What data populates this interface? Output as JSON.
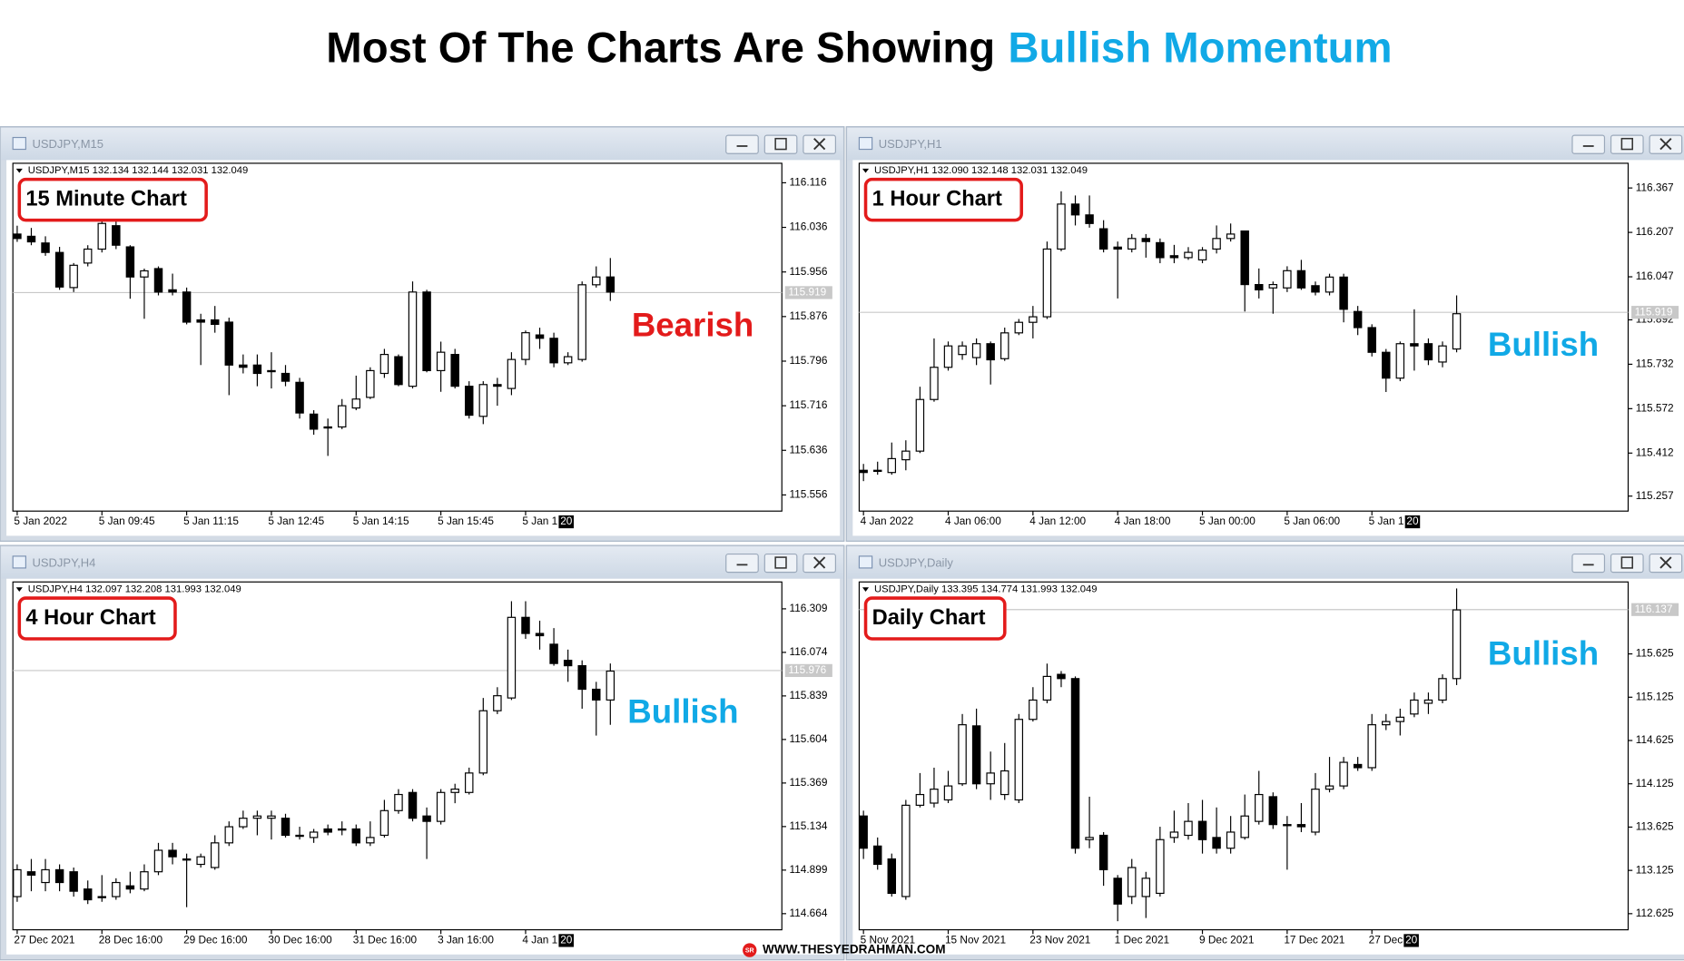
{
  "title": "Most Of The Charts Are Showing",
  "title_highlight": "Bullish Momentum",
  "footer_icon": "SR",
  "footer": "WWW.THESYEDRAHMAN.COM",
  "chart_data": [
    {
      "type": "candlestick",
      "window_title": "USDJPY,M15",
      "info": "USDJPY,M15 132.134 132.144 132.031 132.049",
      "label": "15 Minute Chart",
      "annotation": "Bearish",
      "annotation_color": "#e31b1b",
      "up_color": "#ffffff",
      "down_color": "#000000",
      "categories": [
        "5 Jan 2022",
        null,
        null,
        null,
        null,
        null,
        "5 Jan 09:45",
        null,
        null,
        null,
        null,
        null,
        "5 Jan 11:15",
        null,
        null,
        null,
        null,
        null,
        "5 Jan 12:45",
        null,
        null,
        null,
        null,
        null,
        "5 Jan 14:15",
        null,
        null,
        null,
        null,
        null,
        "5 Jan 15:45",
        null,
        null,
        null,
        null,
        null,
        "5 Jan 1",
        null,
        null,
        null,
        null,
        null,
        null
      ],
      "open": [
        116.024,
        116.02,
        116.008,
        115.991,
        115.928,
        115.972,
        115.997,
        116.039,
        116.001,
        115.947,
        115.962,
        115.924,
        115.92,
        115.87,
        115.87,
        115.866,
        115.789,
        115.789,
        115.779,
        115.774,
        115.758,
        115.701,
        115.678,
        115.678,
        115.712,
        115.731,
        115.774,
        115.804,
        115.751,
        115.92,
        115.779,
        115.808,
        115.751,
        115.697,
        115.754,
        115.747,
        115.799,
        115.843,
        115.837,
        115.793,
        115.799,
        115.933,
        115.947
      ],
      "high": [
        116.039,
        116.035,
        116.02,
        116.001,
        115.972,
        116.004,
        116.049,
        116.047,
        116.004,
        115.962,
        115.966,
        115.953,
        115.928,
        115.881,
        115.895,
        115.874,
        115.808,
        115.808,
        115.812,
        115.789,
        115.766,
        115.708,
        115.693,
        115.728,
        115.77,
        115.785,
        115.818,
        115.808,
        115.939,
        115.924,
        115.831,
        115.818,
        115.76,
        115.76,
        115.766,
        115.812,
        115.851,
        115.856,
        115.847,
        115.812,
        115.939,
        115.966,
        115.981
      ],
      "low": [
        116.01,
        116.004,
        115.985,
        115.924,
        115.92,
        115.966,
        115.991,
        115.997,
        115.908,
        115.872,
        115.914,
        115.914,
        115.862,
        115.789,
        115.847,
        115.735,
        115.774,
        115.751,
        115.747,
        115.751,
        115.693,
        115.664,
        115.626,
        115.674,
        115.708,
        115.728,
        115.766,
        115.751,
        115.747,
        115.776,
        115.741,
        115.747,
        115.693,
        115.683,
        115.716,
        115.735,
        115.789,
        115.818,
        115.785,
        115.789,
        115.795,
        115.928,
        115.904
      ],
      "close": [
        116.016,
        116.01,
        115.991,
        115.929,
        115.968,
        115.997,
        116.043,
        116.004,
        115.947,
        115.958,
        115.92,
        115.92,
        115.866,
        115.866,
        115.862,
        115.789,
        115.785,
        115.774,
        115.779,
        115.76,
        115.703,
        115.674,
        115.678,
        115.716,
        115.728,
        115.779,
        115.808,
        115.754,
        115.92,
        115.779,
        115.812,
        115.751,
        115.699,
        115.754,
        115.751,
        115.799,
        115.847,
        115.837,
        115.793,
        115.804,
        115.933,
        115.947,
        115.92
      ],
      "ylim": [
        115.527,
        116.151
      ],
      "yticks": [
        116.116,
        116.036,
        115.956,
        115.876,
        115.796,
        115.716,
        115.636,
        115.556
      ],
      "current_price": 115.919,
      "cursor_label": "20"
    },
    {
      "type": "candlestick",
      "window_title": "USDJPY,H1",
      "info": "USDJPY,H1 132.090 132.148 132.031 132.049",
      "label": "1 Hour Chart",
      "annotation": "Bullish",
      "annotation_color": "#11a9e6",
      "up_color": "#ffffff",
      "down_color": "#000000",
      "categories": [
        "4 Jan 2022",
        null,
        null,
        null,
        null,
        null,
        "4 Jan 06:00",
        null,
        null,
        null,
        null,
        null,
        "4 Jan 12:00",
        null,
        null,
        null,
        null,
        null,
        "4 Jan 18:00",
        null,
        null,
        null,
        null,
        null,
        "5 Jan 00:00",
        null,
        null,
        null,
        null,
        null,
        "5 Jan 06:00",
        null,
        null,
        null,
        null,
        null,
        "5 Jan 1",
        null,
        null,
        null,
        null,
        null,
        null
      ],
      "open": [
        115.35,
        115.35,
        115.342,
        115.388,
        115.419,
        115.605,
        115.721,
        115.767,
        115.756,
        115.806,
        115.752,
        115.845,
        115.883,
        115.903,
        116.147,
        116.309,
        116.27,
        116.22,
        116.154,
        116.147,
        116.185,
        116.17,
        116.123,
        116.116,
        116.108,
        116.147,
        116.185,
        116.212,
        116.019,
        116.007,
        116.007,
        116.069,
        116.015,
        115.992,
        116.046,
        115.922,
        115.864,
        115.775,
        115.682,
        115.806,
        115.806,
        115.74,
        115.787
      ],
      "high": [
        115.373,
        115.381,
        115.45,
        115.458,
        115.651,
        115.825,
        115.814,
        115.814,
        115.825,
        115.814,
        115.864,
        115.895,
        115.942,
        116.174,
        116.355,
        116.34,
        116.34,
        116.251,
        116.174,
        116.201,
        116.201,
        116.185,
        116.162,
        116.154,
        116.154,
        116.232,
        116.239,
        116.212,
        116.077,
        116.03,
        116.085,
        116.108,
        116.03,
        116.058,
        116.058,
        115.942,
        115.876,
        115.787,
        115.814,
        115.93,
        115.825,
        115.814,
        115.98
      ],
      "low": [
        115.311,
        115.334,
        115.334,
        115.35,
        115.412,
        115.597,
        115.709,
        115.748,
        115.729,
        115.659,
        115.744,
        115.837,
        115.825,
        115.895,
        116.139,
        116.232,
        116.224,
        116.135,
        115.969,
        116.135,
        116.116,
        116.096,
        116.096,
        116.108,
        116.096,
        116.131,
        116.174,
        115.922,
        115.969,
        115.914,
        115.992,
        116.0,
        115.98,
        115.98,
        115.883,
        115.837,
        115.76,
        115.632,
        115.671,
        115.709,
        115.729,
        115.721,
        115.775
      ],
      "close": [
        115.342,
        115.35,
        115.392,
        115.419,
        115.605,
        115.721,
        115.798,
        115.798,
        115.806,
        115.748,
        115.845,
        115.883,
        115.903,
        116.147,
        116.309,
        116.27,
        116.239,
        116.147,
        116.147,
        116.185,
        116.174,
        116.116,
        116.116,
        116.135,
        116.143,
        116.185,
        116.201,
        116.019,
        116.0,
        116.019,
        116.069,
        116.007,
        115.992,
        116.046,
        115.93,
        115.864,
        115.775,
        115.682,
        115.806,
        115.798,
        115.748,
        115.798,
        115.914
      ],
      "ylim": [
        115.203,
        116.456
      ],
      "yticks": [
        116.367,
        116.207,
        116.047,
        115.892,
        115.732,
        115.572,
        115.412,
        115.257
      ],
      "current_price": 115.919,
      "cursor_label": "20"
    },
    {
      "type": "candlestick",
      "window_title": "USDJPY,H4",
      "info": "USDJPY,H4 132.097 132.208 131.993 132.049",
      "label": "4 Hour Chart",
      "annotation": "Bullish",
      "annotation_color": "#11a9e6",
      "up_color": "#ffffff",
      "down_color": "#000000",
      "categories": [
        "27 Dec 2021",
        null,
        null,
        null,
        null,
        null,
        "28 Dec 16:00",
        null,
        null,
        null,
        null,
        null,
        "29 Dec 16:00",
        null,
        null,
        null,
        null,
        null,
        "30 Dec 16:00",
        null,
        null,
        null,
        null,
        null,
        "31 Dec 16:00",
        null,
        null,
        null,
        null,
        null,
        "3 Jan 16:00",
        null,
        null,
        null,
        null,
        null,
        "4 Jan 1",
        null,
        null,
        null,
        null,
        null,
        null
      ],
      "open": [
        114.756,
        114.89,
        114.832,
        114.901,
        114.89,
        114.797,
        114.756,
        114.756,
        114.814,
        114.797,
        114.89,
        115.006,
        114.959,
        114.93,
        114.913,
        115.046,
        115.133,
        115.179,
        115.179,
        115.179,
        115.087,
        115.075,
        115.121,
        115.121,
        115.121,
        115.046,
        115.087,
        115.22,
        115.318,
        115.191,
        115.162,
        115.318,
        115.318,
        115.423,
        115.759,
        115.828,
        116.263,
        116.176,
        116.118,
        116.031,
        116.002,
        115.875,
        115.817
      ],
      "high": [
        114.93,
        114.959,
        114.959,
        114.93,
        114.913,
        114.843,
        114.872,
        114.855,
        114.89,
        114.93,
        115.046,
        115.046,
        114.988,
        114.988,
        115.087,
        115.162,
        115.22,
        115.22,
        115.22,
        115.203,
        115.133,
        115.121,
        115.145,
        115.162,
        115.145,
        115.162,
        115.278,
        115.336,
        115.336,
        115.237,
        115.336,
        115.365,
        115.452,
        115.828,
        115.886,
        116.35,
        116.35,
        116.245,
        116.205,
        116.089,
        116.031,
        115.915,
        116.014
      ],
      "low": [
        114.728,
        114.785,
        114.785,
        114.785,
        114.756,
        114.716,
        114.728,
        114.739,
        114.774,
        114.785,
        114.872,
        114.93,
        114.699,
        114.913,
        114.901,
        115.029,
        115.121,
        115.087,
        115.064,
        115.075,
        115.064,
        115.046,
        115.087,
        115.087,
        115.029,
        115.029,
        115.075,
        115.203,
        115.162,
        114.959,
        115.145,
        115.26,
        115.307,
        115.411,
        115.741,
        115.817,
        116.147,
        116.089,
        116.002,
        115.915,
        115.77,
        115.625,
        115.683
      ],
      "close": [
        114.901,
        114.872,
        114.901,
        114.832,
        114.785,
        114.739,
        114.756,
        114.832,
        114.797,
        114.89,
        115.006,
        114.971,
        114.959,
        114.971,
        115.046,
        115.133,
        115.179,
        115.191,
        115.191,
        115.087,
        115.087,
        115.104,
        115.104,
        115.121,
        115.046,
        115.075,
        115.22,
        115.307,
        115.179,
        115.162,
        115.318,
        115.336,
        115.423,
        115.759,
        115.84,
        116.263,
        116.176,
        116.164,
        116.014,
        116.002,
        115.875,
        115.817,
        115.973
      ],
      "ylim": [
        114.577,
        116.454
      ],
      "yticks": [
        116.309,
        116.074,
        115.839,
        115.604,
        115.369,
        115.134,
        114.899,
        114.664
      ],
      "current_price": 115.976,
      "cursor_label": "20"
    },
    {
      "type": "candlestick",
      "window_title": "USDJPY,Daily",
      "info": "USDJPY,Daily 133.395 134.774 131.993 132.049",
      "label": "Daily Chart",
      "annotation": "Bullish",
      "annotation_color": "#11a9e6",
      "up_color": "#ffffff",
      "down_color": "#000000",
      "categories": [
        "5 Nov 2021",
        null,
        null,
        null,
        null,
        null,
        "15 Nov 2021",
        null,
        null,
        null,
        null,
        null,
        "23 Nov 2021",
        null,
        null,
        null,
        null,
        null,
        "1 Dec 2021",
        null,
        null,
        null,
        null,
        null,
        "9 Dec 2021",
        null,
        null,
        null,
        null,
        null,
        "17 Dec 2021",
        null,
        null,
        null,
        null,
        null,
        "27 Dec",
        null,
        null,
        null,
        null,
        null,
        null
      ],
      "open": [
        113.753,
        113.406,
        113.257,
        112.823,
        113.877,
        113.902,
        113.939,
        114.125,
        114.794,
        114.125,
        114.001,
        113.939,
        114.869,
        115.092,
        115.389,
        115.34,
        113.48,
        113.53,
        113.034,
        112.823,
        112.823,
        112.86,
        113.505,
        113.53,
        113.691,
        113.505,
        113.381,
        113.505,
        113.691,
        113.976,
        113.654,
        113.654,
        113.567,
        114.063,
        114.1,
        114.348,
        114.311,
        114.807,
        114.844,
        114.931,
        115.055,
        115.092,
        115.34
      ],
      "high": [
        113.815,
        113.505,
        113.319,
        113.939,
        114.249,
        114.311,
        114.274,
        114.931,
        114.993,
        114.497,
        114.596,
        114.931,
        115.241,
        115.513,
        115.427,
        115.365,
        113.976,
        113.567,
        113.071,
        113.257,
        113.108,
        113.629,
        113.815,
        113.902,
        113.939,
        113.852,
        113.753,
        114.001,
        114.274,
        114.026,
        113.753,
        113.902,
        114.249,
        114.435,
        114.435,
        114.435,
        114.931,
        114.931,
        114.993,
        115.179,
        115.179,
        115.389,
        116.381
      ],
      "low": [
        113.257,
        113.133,
        112.823,
        112.786,
        113.852,
        113.852,
        113.902,
        114.1,
        114.063,
        113.939,
        113.939,
        113.902,
        114.844,
        115.055,
        115.241,
        113.319,
        113.381,
        112.947,
        112.538,
        112.736,
        112.575,
        112.823,
        113.443,
        113.48,
        113.319,
        113.319,
        113.319,
        113.48,
        113.654,
        113.604,
        113.133,
        113.567,
        113.53,
        114.026,
        114.063,
        114.274,
        114.274,
        114.745,
        114.683,
        114.894,
        114.931,
        115.055,
        115.265
      ],
      "close": [
        113.381,
        113.195,
        112.86,
        113.877,
        114.001,
        114.063,
        114.1,
        114.807,
        114.125,
        114.249,
        114.274,
        114.869,
        115.092,
        115.365,
        115.34,
        113.381,
        113.505,
        113.133,
        112.736,
        113.158,
        113.034,
        113.48,
        113.567,
        113.691,
        113.48,
        113.381,
        113.567,
        113.753,
        114.001,
        113.654,
        113.654,
        113.629,
        114.063,
        114.1,
        114.373,
        114.311,
        114.807,
        114.844,
        114.894,
        115.092,
        115.092,
        115.34,
        116.133
      ],
      "ylim": [
        112.439,
        116.456
      ],
      "yticks": [
        115.625,
        115.125,
        114.625,
        114.125,
        113.625,
        113.125,
        112.625
      ],
      "current_price": 116.137,
      "cursor_label": "20"
    }
  ]
}
